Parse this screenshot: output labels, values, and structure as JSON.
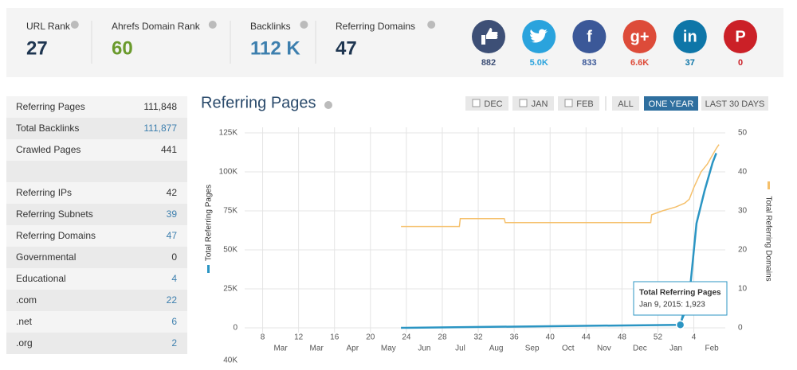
{
  "stats": [
    {
      "label": "URL Rank",
      "value": "27",
      "color": "#1e3550"
    },
    {
      "label": "Ahrefs Domain Rank",
      "value": "60",
      "color": "#6a9a2c"
    },
    {
      "label": "Backlinks",
      "value": "112 K",
      "color": "#3d7fae"
    },
    {
      "label": "Referring Domains",
      "value": "47",
      "color": "#1e3550"
    }
  ],
  "social": [
    {
      "icon": "thumb",
      "count": "882",
      "color": "#3d4f76",
      "text_color": "#3d4f76"
    },
    {
      "icon": "bird",
      "count": "5.0K",
      "color": "#2aa3dd",
      "text_color": "#2aa3dd"
    },
    {
      "icon": "f",
      "count": "833",
      "color": "#3b5898",
      "text_color": "#3b5898"
    },
    {
      "icon": "g+",
      "count": "6.6K",
      "color": "#dd4b39",
      "text_color": "#dd4b39"
    },
    {
      "icon": "in",
      "count": "37",
      "color": "#0e76a8",
      "text_color": "#0e76a8"
    },
    {
      "icon": "P",
      "count": "0",
      "color": "#cb2027",
      "text_color": "#cb2027"
    }
  ],
  "side_table": {
    "rows": [
      {
        "label": "Referring Pages",
        "value": "111,848",
        "color": "#333333"
      },
      {
        "label": "Total Backlinks",
        "value": "111,877",
        "color": "#3d7fae"
      },
      {
        "label": "Crawled Pages",
        "value": "441",
        "color": "#333333"
      },
      null,
      {
        "label": "Referring IPs",
        "value": "42",
        "color": "#333333"
      },
      {
        "label": "Referring Subnets",
        "value": "39",
        "color": "#3d7fae"
      },
      {
        "label": "Referring Domains",
        "value": "47",
        "color": "#3d7fae"
      },
      {
        "label": "Governmental",
        "value": "0",
        "color": "#333333"
      },
      {
        "label": "Educational",
        "value": "4",
        "color": "#3d7fae"
      },
      {
        "label": ".com",
        "value": "22",
        "color": "#3d7fae"
      },
      {
        "label": ".net",
        "value": "6",
        "color": "#3d7fae"
      },
      {
        "label": ".org",
        "value": "2",
        "color": "#3d7fae"
      }
    ]
  },
  "filters": [
    {
      "label": "DEC",
      "checkbox": true,
      "active": false
    },
    {
      "label": "JAN",
      "checkbox": true,
      "active": false
    },
    {
      "label": "FEB",
      "checkbox": true,
      "active": false
    },
    {
      "label": "ALL",
      "checkbox": false,
      "active": false
    },
    {
      "label": "ONE YEAR",
      "checkbox": false,
      "active": true
    },
    {
      "label": "LAST 30 DAYS",
      "checkbox": false,
      "active": false
    }
  ],
  "chart_data": {
    "type": "line",
    "title": "Referring Pages",
    "y_label": "Total Referring Pages",
    "y2_label": "Total Referring Domains",
    "xlim": [
      6,
      59.5
    ],
    "xticks": [
      8,
      12,
      16,
      20,
      24,
      28,
      32,
      36,
      40,
      44,
      48,
      52,
      {
        "value": 56,
        "label": "4"
      }
    ],
    "month_labels": [
      "Mar",
      "Mar",
      "Apr",
      "May",
      "Jun",
      "Jul",
      "Aug",
      "Sep",
      "Oct",
      "Nov",
      "Dec",
      "Jan",
      "Feb"
    ],
    "ylim": [
      0,
      125000
    ],
    "yticks": [
      0,
      {
        "value": 25000,
        "label": "25K"
      },
      {
        "value": 50000,
        "label": "50K"
      },
      {
        "value": 75000,
        "label": "75K"
      },
      {
        "value": 100000,
        "label": "100K"
      },
      {
        "value": 125000,
        "label": "125K"
      }
    ],
    "y2lim": [
      0,
      50
    ],
    "y2ticks": [
      0,
      10,
      20,
      30,
      40,
      50
    ],
    "annotations": [
      "40K"
    ],
    "grid": true,
    "series": [
      {
        "name": "Total Referring Pages",
        "color": "#2b95c3",
        "x": [
          23.4,
          54.5,
          55.6,
          56.3,
          57.2,
          58.1,
          58.5
        ],
        "values": [
          0,
          1923,
          26000,
          67000,
          88000,
          106000,
          112000
        ]
      },
      {
        "name": "Total Referring Domains",
        "color": "#f5c06b",
        "axis": "y2",
        "x": [
          23.4,
          29.9,
          30.0,
          34.9,
          35.0,
          51.2,
          51.3,
          52.5,
          54,
          55,
          55.5,
          56,
          56.8,
          57.5,
          58,
          58.5,
          58.8
        ],
        "values": [
          26,
          26,
          28,
          28,
          27,
          27,
          29,
          30,
          31,
          32,
          33,
          36,
          40,
          42,
          44,
          46,
          47
        ]
      }
    ],
    "tooltip": {
      "title": "Total Referring Pages",
      "text": "Jan 9, 2015: 1,923",
      "series": 0,
      "index": 1
    }
  }
}
